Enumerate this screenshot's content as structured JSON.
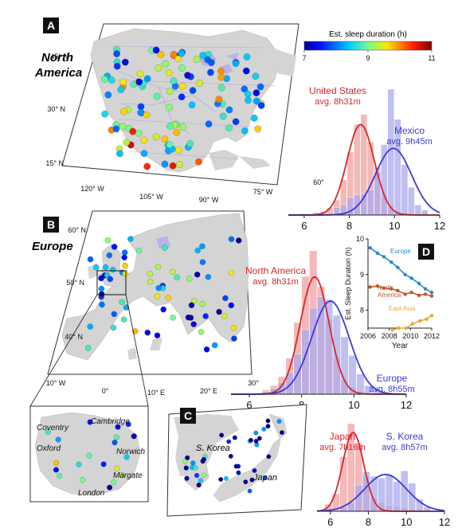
{
  "panels": {
    "A": {
      "letter": "A",
      "region_label": "North America",
      "lat_labels": [
        "45° N",
        "30° N",
        "15° N"
      ],
      "lon_labels": [
        "120° W",
        "105° W",
        "90° W",
        "75° W",
        "60°"
      ]
    },
    "B": {
      "letter": "B",
      "region_label": "Europe",
      "lat_labels": [
        "60° N",
        "50° N",
        "40° N"
      ],
      "lon_labels": [
        "10° W",
        "0°",
        "10° E",
        "20° E",
        "30°"
      ],
      "uk_cities": [
        "Coventry",
        "Cambridge",
        "Norwich",
        "Oxford",
        "Margate",
        "London"
      ]
    },
    "C": {
      "letter": "C",
      "labels": [
        "S. Korea",
        "Japan"
      ]
    },
    "D": {
      "letter": "D"
    }
  },
  "colorbar": {
    "title": "Est. sleep duration (h)",
    "ticks": [
      "7",
      "9",
      "11"
    ],
    "min": 7,
    "max": 11
  },
  "colors": {
    "red": "#d9262a",
    "blue": "#3a3ad6",
    "gold": "#e6a93a",
    "red_fill": "#f2a0a0",
    "blue_fill": "#a9a9ee",
    "overlap": "#8a6aa8"
  },
  "chart_data": [
    {
      "type": "bar",
      "panel": "A",
      "xlim": [
        5.3,
        12
      ],
      "xticks": [
        6,
        8,
        10,
        12
      ],
      "series": [
        {
          "name": "United States",
          "subtitle": "avg. 8h31m",
          "color": "#d9262a",
          "x": [
            5.95,
            6.25,
            6.55,
            6.85,
            7.15,
            7.45,
            7.75,
            8.05,
            8.35,
            8.65,
            8.95,
            9.25,
            9.55,
            9.85,
            10.15,
            10.45,
            10.75,
            11.05
          ],
          "values": [
            0.01,
            0.01,
            0.02,
            0.03,
            0.06,
            0.12,
            0.28,
            0.5,
            0.72,
            0.8,
            0.58,
            0.38,
            0.15,
            0.07,
            0.03,
            0.02,
            0.01,
            0.01
          ],
          "curve_mean": 8.5,
          "curve_sd": 0.6,
          "curve_peak": 0.72
        },
        {
          "name": "Mexico",
          "subtitle": "avg. 9h45m",
          "color": "#3a3ad6",
          "x": [
            7.45,
            7.75,
            8.05,
            8.35,
            8.65,
            8.95,
            9.25,
            9.55,
            9.85,
            10.15,
            10.45,
            10.75,
            11.05,
            11.35
          ],
          "values": [
            0.06,
            0.08,
            0.14,
            0.16,
            0.17,
            0.2,
            0.34,
            0.56,
            1.0,
            0.76,
            0.4,
            0.22,
            0.08,
            0.04
          ],
          "curve_mean": 9.95,
          "curve_sd": 0.8,
          "curve_peak": 0.53
        }
      ]
    },
    {
      "type": "bar",
      "panel": "B",
      "xlim": [
        5.3,
        12
      ],
      "xticks": [
        6,
        8,
        10,
        12
      ],
      "series": [
        {
          "name": "North America",
          "subtitle": "avg. 8h31m",
          "color": "#d9262a",
          "x": [
            6.35,
            6.65,
            6.95,
            7.25,
            7.55,
            7.85,
            8.15,
            8.45,
            8.75,
            9.05,
            9.35,
            9.65,
            9.95,
            10.25,
            10.55
          ],
          "values": [
            0.01,
            0.03,
            0.06,
            0.12,
            0.25,
            0.5,
            0.82,
            1.0,
            0.75,
            0.52,
            0.25,
            0.1,
            0.05,
            0.02,
            0.01
          ],
          "curve_mean": 8.5,
          "curve_sd": 0.55,
          "curve_peak": 0.82
        },
        {
          "name": "Europe",
          "subtitle": "avg. 8h55m",
          "color": "#3a3ad6",
          "x": [
            6.65,
            6.95,
            7.25,
            7.55,
            7.85,
            8.15,
            8.45,
            8.75,
            9.05,
            9.35,
            9.65,
            9.95,
            10.25,
            10.55,
            10.85,
            11.15
          ],
          "values": [
            0.02,
            0.04,
            0.08,
            0.15,
            0.28,
            0.45,
            0.6,
            0.68,
            0.66,
            0.55,
            0.4,
            0.27,
            0.14,
            0.06,
            0.03,
            0.01
          ],
          "curve_mean": 9.1,
          "curve_sd": 0.72,
          "curve_peak": 0.65
        }
      ]
    },
    {
      "type": "bar",
      "panel": "C",
      "xlim": [
        5.3,
        12
      ],
      "xticks": [
        6,
        8,
        10,
        12
      ],
      "series": [
        {
          "name": "Japan",
          "subtitle": "avg. 7h16m",
          "color": "#d9262a",
          "x": [
            5.9,
            6.3,
            6.7,
            7.1,
            7.5,
            7.9,
            8.3,
            8.7,
            9.1,
            9.5,
            9.9,
            10.3
          ],
          "values": [
            0.08,
            0.2,
            0.62,
            1.0,
            0.78,
            0.4,
            0.15,
            0.1,
            0.06,
            0.05,
            0.04,
            0.02
          ],
          "curve_mean": 7.2,
          "curve_sd": 0.55,
          "curve_peak": 0.9
        },
        {
          "name": "S. Korea",
          "subtitle": "avg. 8h57m",
          "color": "#3a3ad6",
          "x": [
            6.7,
            7.1,
            7.5,
            7.9,
            8.3,
            8.7,
            9.1,
            9.5,
            9.9,
            10.3,
            10.7,
            11.1
          ],
          "values": [
            0.05,
            0.1,
            0.3,
            0.45,
            0.4,
            0.38,
            0.42,
            0.34,
            0.46,
            0.32,
            0.14,
            0.05
          ],
          "curve_mean": 8.9,
          "curve_sd": 1.1,
          "curve_peak": 0.42
        }
      ]
    },
    {
      "type": "line",
      "panel": "D",
      "xlabel": "Year",
      "ylabel": "Est. Sleep Duration (h)",
      "xlim": [
        2006,
        2012
      ],
      "ylim": [
        7.5,
        10
      ],
      "xticks": [
        2006,
        2008,
        2010,
        2012
      ],
      "yticks": [
        8,
        9,
        10
      ],
      "series": [
        {
          "name": "Europe",
          "color": "#2a8ac4",
          "x": [
            2006.2,
            2006.9,
            2007.5,
            2008.2,
            2008.8,
            2009.5,
            2010.1,
            2010.8,
            2011.4,
            2012.0
          ],
          "y": [
            9.75,
            9.6,
            9.5,
            9.35,
            9.2,
            9.0,
            8.9,
            8.75,
            8.6,
            8.5
          ]
        },
        {
          "name": "North America",
          "color": "#c2572a",
          "x": [
            2006.2,
            2006.9,
            2007.5,
            2008.2,
            2008.8,
            2009.5,
            2010.1,
            2010.8,
            2011.4,
            2012.0
          ],
          "y": [
            8.65,
            8.68,
            8.62,
            8.6,
            8.55,
            8.45,
            8.5,
            8.42,
            8.45,
            8.4
          ]
        },
        {
          "name": "East Asia",
          "color": "#e6a93a",
          "x": [
            2008.3,
            2008.9,
            2009.6,
            2010.2,
            2010.9,
            2011.5,
            2012.0
          ],
          "y": [
            7.45,
            7.5,
            7.5,
            7.62,
            7.7,
            7.75,
            7.85
          ]
        }
      ]
    }
  ]
}
